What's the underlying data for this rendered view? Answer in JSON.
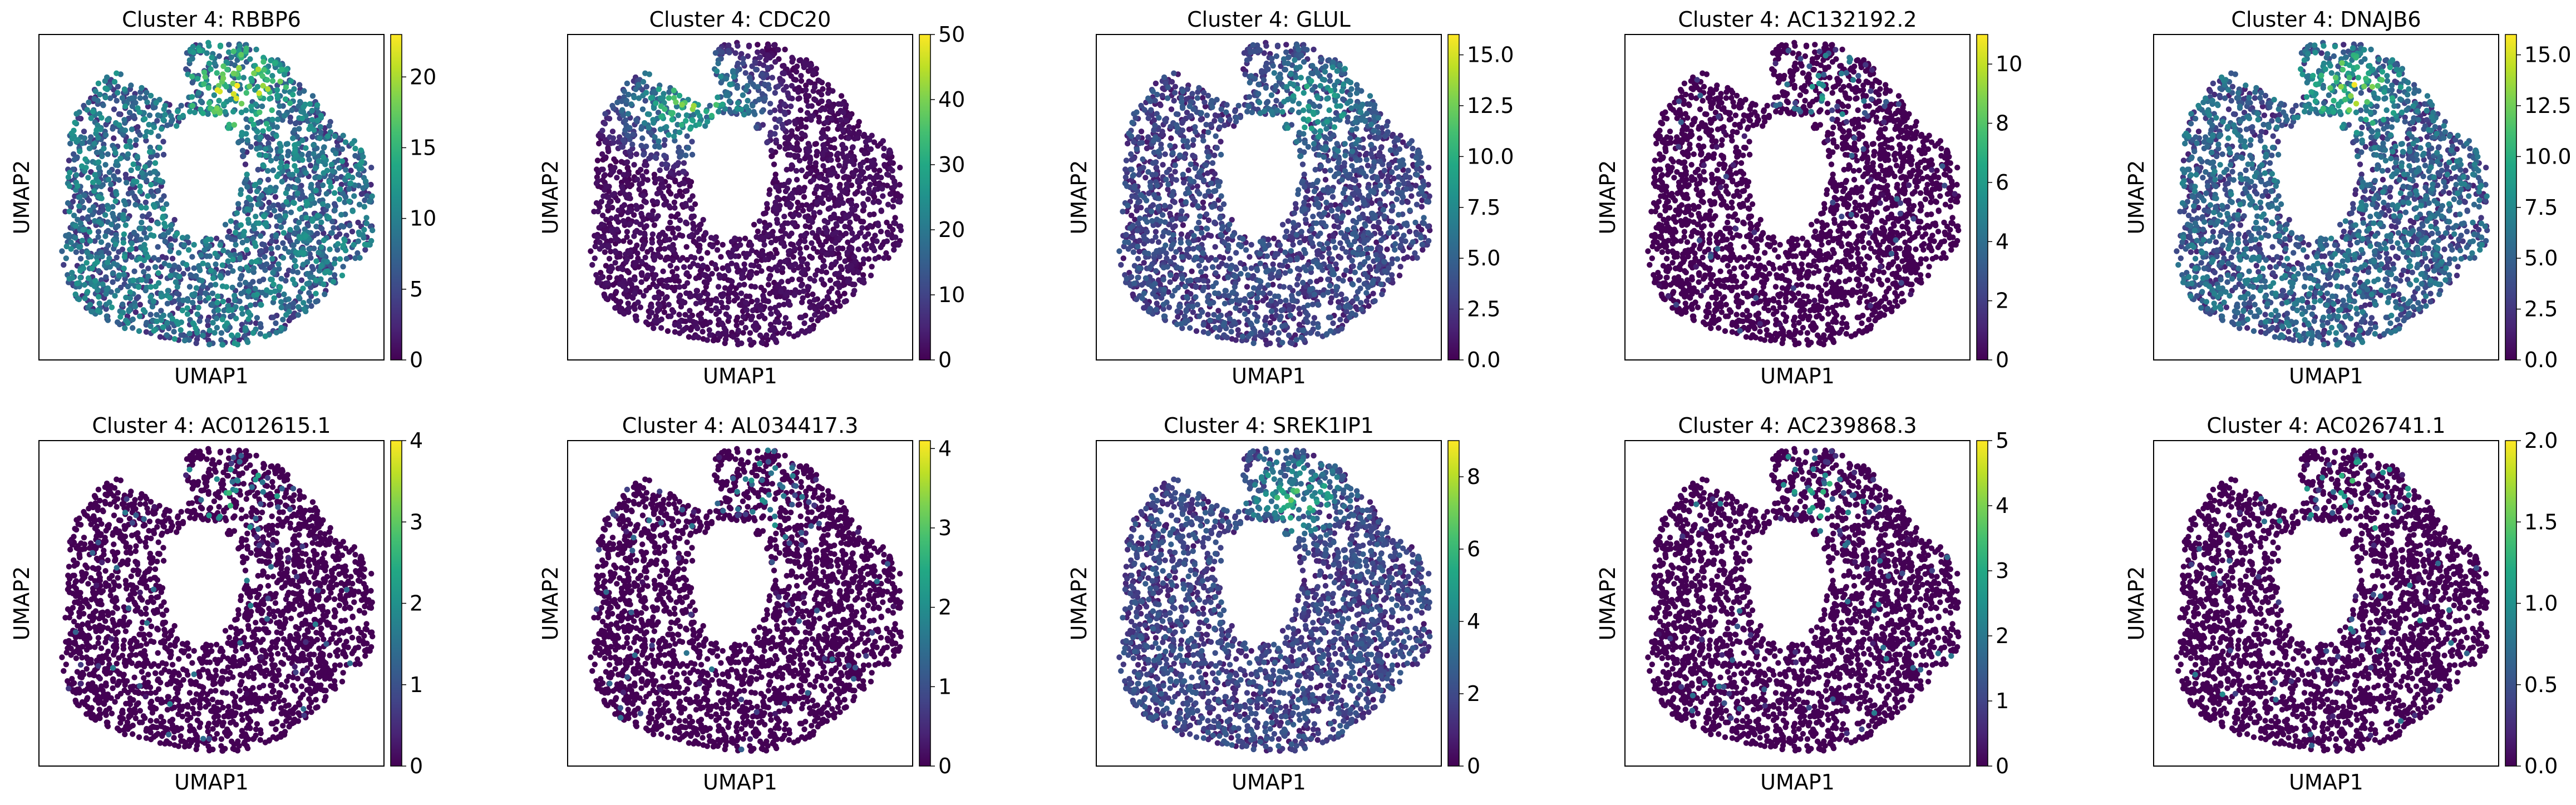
{
  "figure": {
    "background": "#ffffff",
    "colormap": "viridis"
  },
  "chart_data": [
    {
      "type": "scatter",
      "title": "Cluster 4: RBBP6",
      "xlabel": "UMAP1",
      "ylabel": "UMAP2",
      "colorbar": {
        "min": 0,
        "max": 23,
        "ticks": [
          "0",
          "5",
          "10",
          "15",
          "20"
        ],
        "tick_values": [
          0,
          5,
          10,
          15,
          20
        ]
      },
      "expression_pattern": "broad",
      "background_level": 0.35,
      "hotspot_level": 0.75,
      "hotspot_region": "upper"
    },
    {
      "type": "scatter",
      "title": "Cluster 4: CDC20",
      "xlabel": "UMAP1",
      "ylabel": "UMAP2",
      "colorbar": {
        "min": 0,
        "max": 50,
        "ticks": [
          "0",
          "10",
          "20",
          "30",
          "40",
          "50"
        ],
        "tick_values": [
          0,
          10,
          20,
          30,
          40,
          50
        ]
      },
      "expression_pattern": "upper",
      "background_level": 0.0,
      "hotspot_level": 0.7,
      "hotspot_region": "upper-left"
    },
    {
      "type": "scatter",
      "title": "Cluster 4: GLUL",
      "xlabel": "UMAP1",
      "ylabel": "UMAP2",
      "colorbar": {
        "min": 0,
        "max": 16,
        "ticks": [
          "0.0",
          "2.5",
          "5.0",
          "7.5",
          "10.0",
          "12.5",
          "15.0"
        ],
        "tick_values": [
          0,
          2.5,
          5,
          7.5,
          10,
          12.5,
          15
        ]
      },
      "expression_pattern": "broad",
      "background_level": 0.2,
      "hotspot_level": 0.55,
      "hotspot_region": "upper-right"
    },
    {
      "type": "scatter",
      "title": "Cluster 4: AC132192.2",
      "xlabel": "UMAP1",
      "ylabel": "UMAP2",
      "colorbar": {
        "min": 0,
        "max": 11,
        "ticks": [
          "0",
          "2",
          "4",
          "6",
          "8",
          "10"
        ],
        "tick_values": [
          0,
          2,
          4,
          6,
          8,
          10
        ]
      },
      "expression_pattern": "sparse",
      "background_level": 0.0,
      "hotspot_level": 0.35,
      "hotspot_region": "upper"
    },
    {
      "type": "scatter",
      "title": "Cluster 4: DNAJB6",
      "xlabel": "UMAP1",
      "ylabel": "UMAP2",
      "colorbar": {
        "min": 0,
        "max": 16,
        "ticks": [
          "0.0",
          "2.5",
          "5.0",
          "7.5",
          "10.0",
          "12.5",
          "15.0"
        ],
        "tick_values": [
          0,
          2.5,
          5,
          7.5,
          10,
          12.5,
          15
        ]
      },
      "expression_pattern": "broad",
      "background_level": 0.3,
      "hotspot_level": 0.65,
      "hotspot_region": "upper"
    },
    {
      "type": "scatter",
      "title": "Cluster 4: AC012615.1",
      "xlabel": "UMAP1",
      "ylabel": "UMAP2",
      "colorbar": {
        "min": 0,
        "max": 4,
        "ticks": [
          "0",
          "1",
          "2",
          "3",
          "4"
        ],
        "tick_values": [
          0,
          1,
          2,
          3,
          4
        ]
      },
      "expression_pattern": "sparse",
      "background_level": 0.0,
      "hotspot_level": 0.45,
      "hotspot_region": "upper"
    },
    {
      "type": "scatter",
      "title": "Cluster 4: AL034417.3",
      "xlabel": "UMAP1",
      "ylabel": "UMAP2",
      "colorbar": {
        "min": 0,
        "max": 4.1,
        "ticks": [
          "0",
          "1",
          "2",
          "3",
          "4"
        ],
        "tick_values": [
          0,
          1,
          2,
          3,
          4
        ]
      },
      "expression_pattern": "sparse",
      "background_level": 0.0,
      "hotspot_level": 0.4,
      "hotspot_region": "upper"
    },
    {
      "type": "scatter",
      "title": "Cluster 4: SREK1IP1",
      "xlabel": "UMAP1",
      "ylabel": "UMAP2",
      "colorbar": {
        "min": 0,
        "max": 9,
        "ticks": [
          "0",
          "2",
          "4",
          "6",
          "8"
        ],
        "tick_values": [
          0,
          2,
          4,
          6,
          8
        ]
      },
      "expression_pattern": "broad",
      "background_level": 0.2,
      "hotspot_level": 0.6,
      "hotspot_region": "upper"
    },
    {
      "type": "scatter",
      "title": "Cluster 4: AC239868.3",
      "xlabel": "UMAP1",
      "ylabel": "UMAP2",
      "colorbar": {
        "min": 0,
        "max": 5,
        "ticks": [
          "0",
          "1",
          "2",
          "3",
          "4",
          "5"
        ],
        "tick_values": [
          0,
          1,
          2,
          3,
          4,
          5
        ]
      },
      "expression_pattern": "sparse",
      "background_level": 0.0,
      "hotspot_level": 0.45,
      "hotspot_region": "upper"
    },
    {
      "type": "scatter",
      "title": "Cluster 4: AC026741.1",
      "xlabel": "UMAP1",
      "ylabel": "UMAP2",
      "colorbar": {
        "min": 0,
        "max": 2.0,
        "ticks": [
          "0.0",
          "0.5",
          "1.0",
          "1.5",
          "2.0"
        ],
        "tick_values": [
          0,
          0.5,
          1,
          1.5,
          2
        ]
      },
      "expression_pattern": "sparse",
      "background_level": 0.0,
      "hotspot_level": 0.5,
      "hotspot_region": "upper"
    }
  ]
}
